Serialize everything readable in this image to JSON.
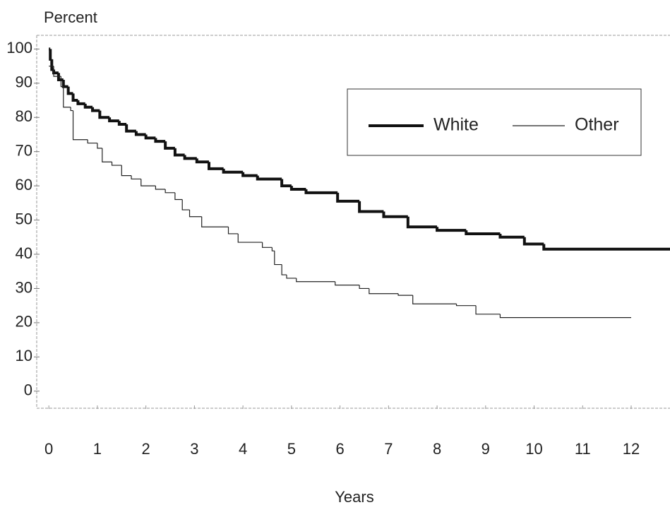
{
  "chart_data": {
    "type": "line",
    "step": "post",
    "y_axis_title": "Percent",
    "x_axis_title": "Years",
    "xlim": [
      -0.25,
      12.8
    ],
    "ylim": [
      -5,
      104
    ],
    "xticks": [
      0,
      1,
      2,
      3,
      4,
      5,
      6,
      7,
      8,
      9,
      10,
      11,
      12
    ],
    "yticks": [
      0,
      10,
      20,
      30,
      40,
      50,
      60,
      70,
      80,
      90,
      100
    ],
    "grid": false,
    "legend": "upper right",
    "series": [
      {
        "name": "White",
        "color": "#111111",
        "line_width": 4,
        "x": [
          0,
          0.03,
          0.06,
          0.1,
          0.2,
          0.3,
          0.4,
          0.5,
          0.6,
          0.75,
          0.9,
          1.05,
          1.25,
          1.45,
          1.6,
          1.8,
          2,
          2.2,
          2.4,
          2.6,
          2.8,
          3.05,
          3.3,
          3.6,
          4,
          4.3,
          4.8,
          5,
          5.3,
          5.95,
          6.4,
          6.9,
          7.4,
          8,
          8.6,
          9.3,
          9.8,
          10.2,
          12.8
        ],
        "values": [
          100,
          97,
          94,
          93,
          91,
          89,
          87,
          85,
          84,
          83,
          82,
          80,
          79,
          78,
          76,
          75,
          74,
          73,
          71,
          69,
          68,
          67,
          65,
          64,
          63,
          62,
          60,
          59,
          58,
          55.5,
          52.5,
          51,
          48,
          47,
          46,
          45,
          43,
          41.5,
          41.5
        ]
      },
      {
        "name": "Other",
        "color": "#222222",
        "line_width": 1.2,
        "x": [
          0,
          0.1,
          0.25,
          0.3,
          0.45,
          0.5,
          0.8,
          1,
          1.1,
          1.3,
          1.5,
          1.7,
          1.9,
          2.2,
          2.4,
          2.6,
          2.75,
          2.9,
          3.15,
          3.7,
          3.9,
          4.4,
          4.6,
          4.65,
          4.8,
          4.9,
          5.1,
          5.9,
          6.4,
          6.6,
          7.2,
          7.5,
          8.4,
          8.8,
          9.3,
          12
        ],
        "values": [
          95,
          92,
          89,
          83,
          82,
          73.5,
          72.5,
          71,
          67,
          66,
          63,
          62,
          60,
          59,
          58,
          56,
          53,
          51,
          48,
          46,
          43.5,
          42,
          41,
          37,
          34,
          33,
          32,
          31,
          30,
          28.5,
          28,
          25.5,
          25,
          22.5,
          21.5,
          21.5
        ]
      }
    ]
  }
}
